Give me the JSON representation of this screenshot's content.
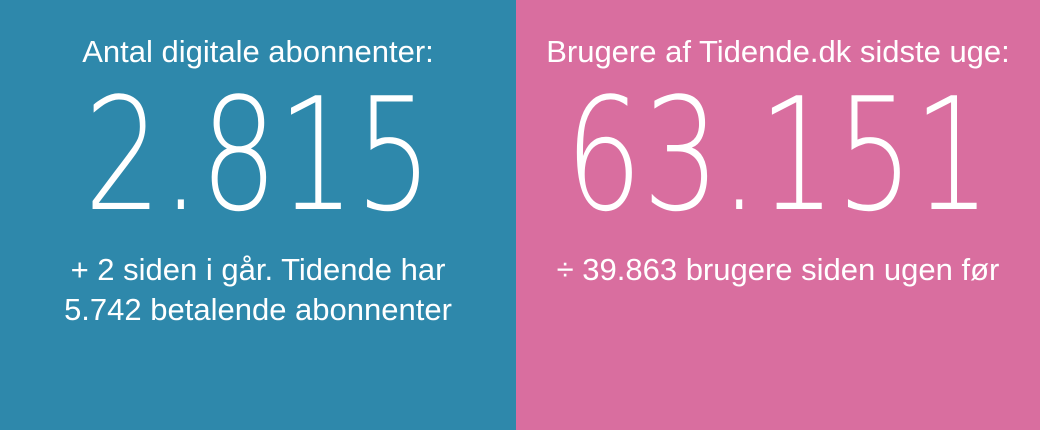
{
  "left": {
    "heading": "Antal digitale abonnenter:",
    "value": "2.815",
    "sub_line1": "+ 2 siden i går. Tidende har",
    "sub_line2": "5.742 betalende abonnenter",
    "background": "#2e88ab"
  },
  "right": {
    "heading": "Brugere af Tidende.dk sidste uge:",
    "value": "63.151",
    "sub_line1": "÷ 39.863 brugere siden ugen før",
    "background": "#d96e9f"
  }
}
